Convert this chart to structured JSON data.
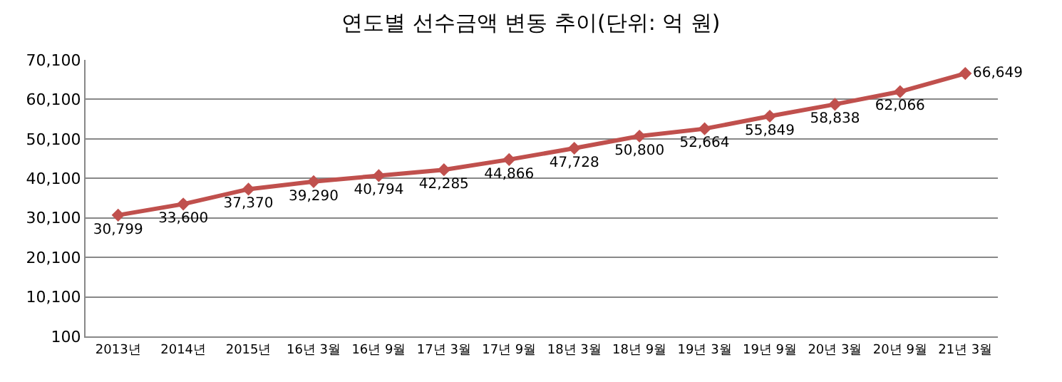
{
  "chart_data": {
    "type": "line",
    "title": "연도별 선수금액 변동 추이(단위: 억 원)",
    "categories": [
      "2013년",
      "2014년",
      "2015년",
      "16년 3월",
      "16년 9월",
      "17년 3월",
      "17년 9월",
      "18년 3월",
      "18년 9월",
      "19년 3월",
      "19년 9월",
      "20년 3월",
      "20년 9월",
      "21년 3월"
    ],
    "series": [
      {
        "color": "#c0504d",
        "values": [
          30799,
          33600,
          37370,
          39290,
          40794,
          42285,
          44866,
          47728,
          50800,
          52664,
          55849,
          58838,
          62066,
          66649
        ],
        "value_labels": [
          "30,799",
          "33,600",
          "37,370",
          "39,290",
          "40,794",
          "42,285",
          "44,866",
          "47,728",
          "50,800",
          "52,664",
          "55,849",
          "58,838",
          "62,066",
          "66,649"
        ]
      }
    ],
    "ylim": [
      100,
      70100
    ],
    "yticks": [
      {
        "value": 100,
        "label": "100"
      },
      {
        "value": 10100,
        "label": "10,100"
      },
      {
        "value": 20100,
        "label": "20,100"
      },
      {
        "value": 30100,
        "label": "30,100"
      },
      {
        "value": 40100,
        "label": "40,100"
      },
      {
        "value": 50100,
        "label": "50,100"
      },
      {
        "value": 60100,
        "label": "60,100"
      },
      {
        "value": 70100,
        "label": "70,100"
      }
    ],
    "grid": "y",
    "marker": "diamond",
    "line_style": "solid"
  }
}
